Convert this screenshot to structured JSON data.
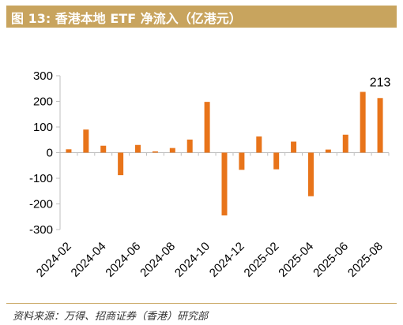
{
  "title": "图 13:  香港本地 ETF 净流入（亿港元）",
  "source": "资料来源：万得、招商证券（香港）研究部",
  "colors": {
    "bar": "#e8741a",
    "title_bg": "#c8a45e",
    "axis": "#bfbfbf"
  },
  "chart_data": {
    "type": "bar",
    "categories": [
      "2024-02",
      "2024-03",
      "2024-04",
      "2024-05",
      "2024-06",
      "2024-07",
      "2024-08",
      "2024-09",
      "2024-10",
      "2024-11",
      "2024-12",
      "2025-01",
      "2025-02",
      "2025-03",
      "2025-04",
      "2025-05",
      "2025-06",
      "2025-07",
      "2025-08"
    ],
    "x_tick_labels": [
      "2024-02",
      "2024-04",
      "2024-06",
      "2024-08",
      "2024-10",
      "2024-12",
      "2025-02",
      "2025-04",
      "2025-06",
      "2025-08"
    ],
    "values": [
      13,
      90,
      27,
      -88,
      30,
      5,
      18,
      51,
      198,
      -245,
      -67,
      63,
      -65,
      43,
      -170,
      12,
      70,
      237,
      213
    ],
    "y_ticks": [
      300,
      200,
      100,
      0,
      -100,
      -200,
      -300
    ],
    "ylim": [
      -300,
      300
    ],
    "data_labels": [
      {
        "category": "2025-08",
        "text": "213"
      }
    ],
    "xlabel": "",
    "ylabel": "",
    "grid": false
  }
}
